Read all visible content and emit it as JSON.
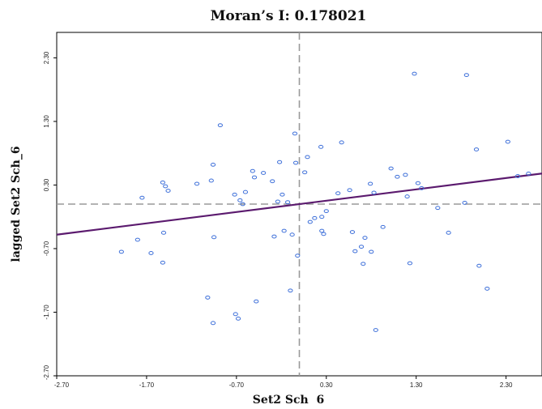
{
  "chart_data": {
    "type": "scatter",
    "title": "Moran’s I: 0.178021",
    "xlabel": "Set2 Sch  6",
    "ylabel": "lagged Set2 Sch_6",
    "xlim": [
      -2.7,
      2.7
    ],
    "ylim": [
      -2.7,
      2.7
    ],
    "x_ticks": [
      -2.7,
      -1.7,
      -0.7,
      0.3,
      1.3,
      2.3
    ],
    "x_tick_labels": [
      "-2.70",
      "-1.70",
      "-0.70",
      "0.30",
      "1.30",
      "2.30"
    ],
    "y_ticks": [
      -2.7,
      -1.7,
      -0.7,
      0.3,
      1.3,
      2.3
    ],
    "y_tick_labels": [
      "-2.70",
      "-1.70",
      "-0.70",
      "0.30",
      "1.30",
      "2.30"
    ],
    "x_mean_line": 0.0,
    "y_mean_line": 0.0,
    "regression": {
      "slope": 0.178021,
      "intercept": 0.0,
      "color": "#5b1a6e"
    },
    "point_color": "#3d6fd9",
    "guide_color": "#9a9a9a",
    "points": [
      {
        "x": -1.98,
        "y": -0.75
      },
      {
        "x": -1.8,
        "y": -0.56
      },
      {
        "x": -1.75,
        "y": 0.1
      },
      {
        "x": -1.65,
        "y": -0.77
      },
      {
        "x": -1.52,
        "y": -0.92
      },
      {
        "x": -1.51,
        "y": -0.45
      },
      {
        "x": -1.49,
        "y": 0.28
      },
      {
        "x": -1.46,
        "y": 0.21
      },
      {
        "x": -1.52,
        "y": 0.34
      },
      {
        "x": -1.14,
        "y": 0.32
      },
      {
        "x": -1.02,
        "y": -1.47
      },
      {
        "x": -0.96,
        "y": -1.87
      },
      {
        "x": -0.96,
        "y": 0.62
      },
      {
        "x": -0.98,
        "y": 0.37
      },
      {
        "x": -0.88,
        "y": 1.24
      },
      {
        "x": -0.95,
        "y": -0.52
      },
      {
        "x": -0.72,
        "y": 0.15
      },
      {
        "x": -0.71,
        "y": -1.73
      },
      {
        "x": -0.68,
        "y": -1.8
      },
      {
        "x": -0.66,
        "y": 0.06
      },
      {
        "x": -0.63,
        "y": 0.0
      },
      {
        "x": -0.6,
        "y": 0.19
      },
      {
        "x": -0.52,
        "y": 0.52
      },
      {
        "x": -0.5,
        "y": 0.42
      },
      {
        "x": -0.48,
        "y": -1.53
      },
      {
        "x": -0.4,
        "y": 0.49
      },
      {
        "x": -0.3,
        "y": 0.36
      },
      {
        "x": -0.28,
        "y": -0.51
      },
      {
        "x": -0.24,
        "y": 0.04
      },
      {
        "x": -0.22,
        "y": 0.66
      },
      {
        "x": -0.19,
        "y": 0.15
      },
      {
        "x": -0.17,
        "y": -0.42
      },
      {
        "x": -0.13,
        "y": 0.03
      },
      {
        "x": -0.1,
        "y": -1.36
      },
      {
        "x": -0.08,
        "y": -0.48
      },
      {
        "x": -0.05,
        "y": 1.11
      },
      {
        "x": -0.04,
        "y": 0.65
      },
      {
        "x": -0.02,
        "y": -0.81
      },
      {
        "x": 0.06,
        "y": 0.5
      },
      {
        "x": 0.09,
        "y": 0.74
      },
      {
        "x": 0.12,
        "y": -0.28
      },
      {
        "x": 0.17,
        "y": -0.22
      },
      {
        "x": 0.24,
        "y": 0.9
      },
      {
        "x": 0.25,
        "y": -0.2
      },
      {
        "x": 0.25,
        "y": -0.42
      },
      {
        "x": 0.27,
        "y": -0.47
      },
      {
        "x": 0.3,
        "y": -0.11
      },
      {
        "x": 0.43,
        "y": 0.17
      },
      {
        "x": 0.47,
        "y": 0.97
      },
      {
        "x": 0.56,
        "y": 0.22
      },
      {
        "x": 0.59,
        "y": -0.44
      },
      {
        "x": 0.62,
        "y": -0.74
      },
      {
        "x": 0.69,
        "y": -0.67
      },
      {
        "x": 0.71,
        "y": -0.94
      },
      {
        "x": 0.73,
        "y": -0.53
      },
      {
        "x": 0.79,
        "y": 0.32
      },
      {
        "x": 0.8,
        "y": -0.75
      },
      {
        "x": 0.83,
        "y": 0.18
      },
      {
        "x": 0.85,
        "y": -1.98
      },
      {
        "x": 0.93,
        "y": -0.36
      },
      {
        "x": 1.02,
        "y": 0.56
      },
      {
        "x": 1.09,
        "y": 0.43
      },
      {
        "x": 1.18,
        "y": 0.46
      },
      {
        "x": 1.2,
        "y": 0.12
      },
      {
        "x": 1.23,
        "y": -0.93
      },
      {
        "x": 1.28,
        "y": 2.05
      },
      {
        "x": 1.32,
        "y": 0.33
      },
      {
        "x": 1.36,
        "y": 0.25
      },
      {
        "x": 1.54,
        "y": -0.06
      },
      {
        "x": 1.66,
        "y": -0.45
      },
      {
        "x": 1.84,
        "y": 0.02
      },
      {
        "x": 1.86,
        "y": 2.03
      },
      {
        "x": 1.97,
        "y": 0.86
      },
      {
        "x": 2.0,
        "y": -0.97
      },
      {
        "x": 2.09,
        "y": -1.33
      },
      {
        "x": 2.32,
        "y": 0.98
      },
      {
        "x": 2.43,
        "y": 0.44
      },
      {
        "x": 2.55,
        "y": 0.48
      }
    ]
  }
}
